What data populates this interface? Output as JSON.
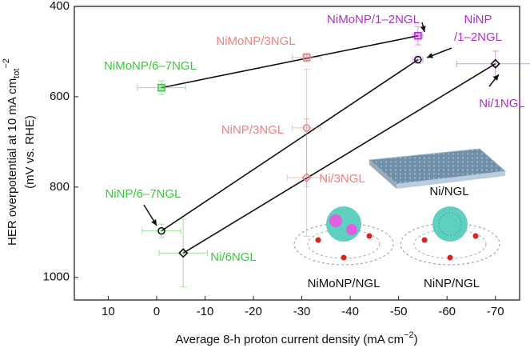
{
  "chart_data": {
    "type": "scatter",
    "ylabel_main": "HER overpotential at 10 mA cm",
    "ylabel_sub": "tot",
    "ylabel_sup": "−2",
    "ylabel_line2": "(mV vs. RHE)",
    "xlabel_main": "Average 8-h proton current density (mA cm",
    "xlabel_sup": "−2",
    "xlabel_end": ")",
    "xlim": [
      17,
      -75
    ],
    "xticks": [
      10,
      0,
      -10,
      -20,
      -30,
      -40,
      -50,
      -60,
      -70
    ],
    "ylim": [
      400,
      1050
    ],
    "yticks": [
      400,
      600,
      800,
      1000
    ],
    "series": [
      {
        "marker": "square",
        "connect": [
          0,
          2
        ],
        "line_color": "#111111",
        "x": [
          -1,
          -31,
          -54
        ],
        "y": [
          580,
          513,
          465
        ],
        "xerr": [
          5,
          3,
          1
        ],
        "yerr": [
          15,
          10,
          20
        ],
        "colors": [
          "#3dc93d",
          "#f08080",
          "#b030d0"
        ],
        "labels": [
          [
            "NiMoNP/6–7NGL"
          ],
          [
            "NiMoNP/3NGL"
          ],
          [
            "NiMoNP/1–2NGL"
          ]
        ]
      },
      {
        "marker": "circle",
        "connect": [
          0,
          2
        ],
        "line_color": "#111111",
        "x": [
          -1,
          -31,
          -54
        ],
        "y": [
          897,
          669,
          518
        ],
        "xerr": [
          4,
          3,
          1
        ],
        "yerr": [
          15,
          130,
          8
        ],
        "colors": [
          "#3dc93d",
          "#f08080",
          "#b030d0"
        ],
        "labels": [
          [
            "NiNP/6–7NGL"
          ],
          [
            "NiNP/3NGL"
          ],
          [
            "NiNP",
            "/1–2NGL"
          ]
        ]
      },
      {
        "marker": "diamond",
        "connect": [
          0,
          2
        ],
        "line_color": "#111111",
        "x": [
          -5.5,
          -31,
          -70
        ],
        "y": [
          946,
          779,
          527
        ],
        "xerr": [
          5,
          4,
          8
        ],
        "yerr": [
          75,
          130,
          28
        ],
        "colors": [
          "#3dc93d",
          "#f08080",
          "#b030d0"
        ],
        "labels": [
          [
            "Ni/6NGL"
          ],
          [
            "Ni/3NGL"
          ],
          [
            "Ni/1NGL"
          ]
        ]
      }
    ],
    "insets": [
      "Ni/NGL",
      "NiMoNP/NGL",
      "NiNP/NGL"
    ]
  }
}
